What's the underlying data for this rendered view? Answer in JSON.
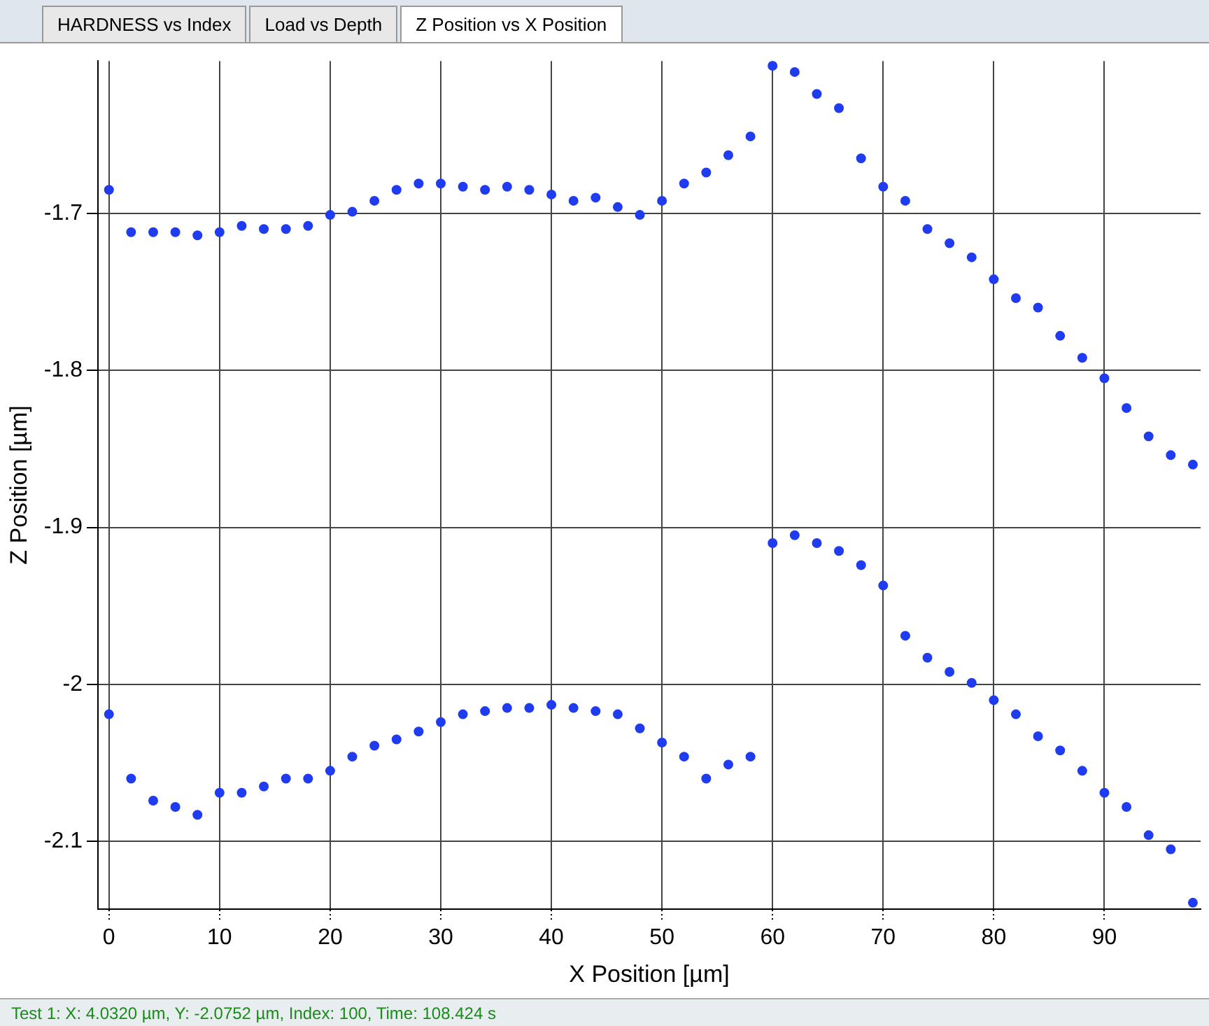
{
  "chart_data": {
    "type": "scatter",
    "xlabel": "X Position [µm]",
    "ylabel": "Z Position [µm]",
    "annotations": [
      "HARDNESS vs Index",
      "Load vs Depth",
      "Z Position vs X Position",
      "Test 1: X: 4.0320 µm, Y: -2.0752 µm,  Index: 100, Time: 108.424 s"
    ],
    "xlim": [
      -1,
      98.7
    ],
    "xticks": [
      0,
      10,
      20,
      30,
      40,
      50,
      60,
      70,
      80,
      90
    ],
    "ylim": [
      -2.143,
      -1.603
    ],
    "yticks": [
      -2.1,
      -2,
      -1.9,
      -1.8,
      -1.7
    ],
    "grid": true,
    "legend": false,
    "marker": "circle",
    "series": [
      {
        "color": "#1f3cf0",
        "x": [
          0,
          0,
          2,
          2,
          4,
          4,
          6,
          6,
          8,
          8,
          10,
          10,
          12,
          12,
          14,
          14,
          16,
          16,
          18,
          18,
          20,
          20,
          22,
          22,
          24,
          24,
          26,
          26,
          28,
          28,
          30,
          30,
          32,
          32,
          34,
          34,
          36,
          36,
          38,
          38,
          40,
          40,
          42,
          42,
          44,
          44,
          46,
          46,
          48,
          48,
          50,
          50,
          52,
          52,
          54,
          54,
          56,
          56,
          58,
          58,
          60,
          60,
          62,
          62,
          64,
          64,
          66,
          66,
          68,
          68,
          70,
          70,
          72,
          72,
          74,
          74,
          76,
          76,
          78,
          78,
          80,
          80,
          82,
          82,
          84,
          84,
          86,
          86,
          88,
          88,
          90,
          90,
          92,
          92,
          94,
          94,
          96,
          96,
          98,
          98
        ],
        "values": [
          -1.685,
          -2.019,
          -1.712,
          -2.06,
          -1.712,
          -2.074,
          -1.712,
          -2.078,
          -1.714,
          -2.083,
          -1.712,
          -2.069,
          -1.708,
          -2.069,
          -1.71,
          -2.065,
          -1.71,
          -2.06,
          -1.708,
          -2.06,
          -1.701,
          -2.055,
          -1.699,
          -2.046,
          -1.692,
          -2.039,
          -1.685,
          -2.035,
          -1.681,
          -2.03,
          -1.681,
          -2.024,
          -1.683,
          -2.019,
          -1.685,
          -2.017,
          -1.683,
          -2.015,
          -1.685,
          -2.015,
          -1.688,
          -2.013,
          -1.692,
          -2.015,
          -1.69,
          -2.017,
          -1.696,
          -2.019,
          -1.701,
          -2.028,
          -1.692,
          -2.037,
          -1.681,
          -2.046,
          -1.674,
          -2.06,
          -1.663,
          -2.051,
          -1.651,
          -2.046,
          -1.606,
          -1.91,
          -1.61,
          -1.905,
          -1.624,
          -1.91,
          -1.633,
          -1.915,
          -1.665,
          -1.924,
          -1.683,
          -1.937,
          -1.692,
          -1.969,
          -1.71,
          -1.983,
          -1.719,
          -1.992,
          -1.728,
          -1.999,
          -1.742,
          -2.01,
          -1.754,
          -2.019,
          -1.76,
          -2.033,
          -1.778,
          -2.042,
          -1.792,
          -2.055,
          -1.805,
          -2.069,
          -1.824,
          -2.078,
          -1.842,
          -2.096,
          -1.854,
          -2.105,
          -1.86,
          -2.139
        ]
      }
    ]
  }
}
